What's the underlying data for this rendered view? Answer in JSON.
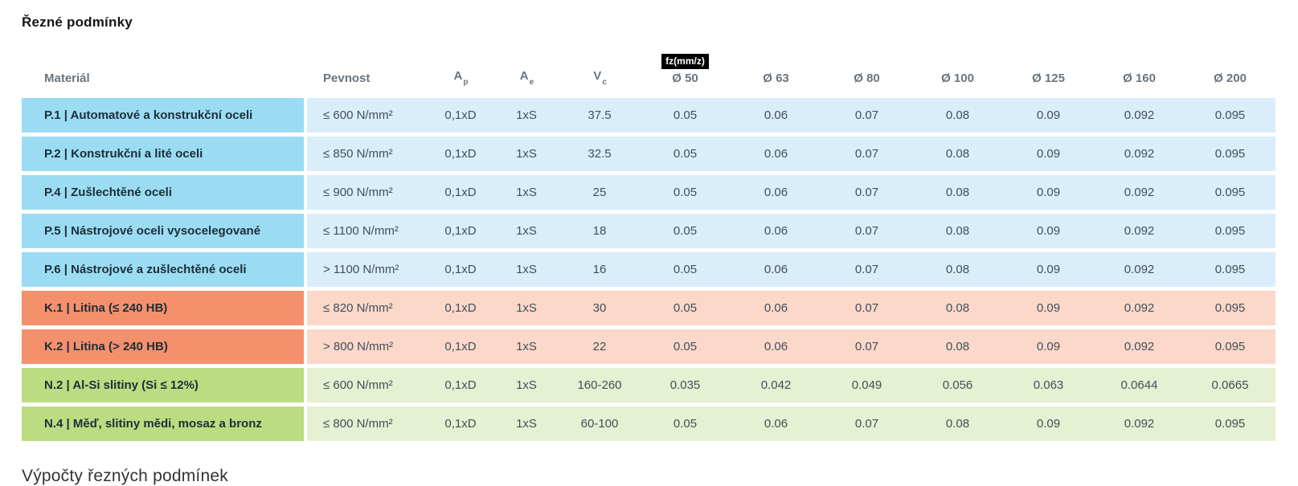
{
  "page": {
    "title": "Řezné podmínky",
    "section_heading": "Výpočty řezných podmínek"
  },
  "table": {
    "headers": {
      "material": "Materiál",
      "strength": "Pevnost",
      "ap": {
        "base": "A",
        "sub": "p"
      },
      "ae": {
        "base": "A",
        "sub": "e"
      },
      "vc": {
        "base": "V",
        "sub": "c"
      },
      "fz_badge": "fz(mm/z)",
      "diameters": [
        "Ø 50",
        "Ø 63",
        "Ø 80",
        "Ø 100",
        "Ø 125",
        "Ø 160",
        "Ø 200"
      ]
    },
    "colors": {
      "steel_dark": "#9bdcf3",
      "steel_light": "#d9eefa",
      "cast_iron_dark": "#f5906c",
      "cast_iron_light": "#fbd8ca",
      "nonferrous_dark": "#bcdc82",
      "nonferrous_light": "#e6f0d2"
    },
    "rows": [
      {
        "group": "steel",
        "material": "P.1 | Automatové a konstrukční oceli",
        "pevnost": "≤ 600 N/mm²",
        "ap": "0,1xD",
        "ae": "1xS",
        "vc": "37.5",
        "fz": [
          "0.05",
          "0.06",
          "0.07",
          "0.08",
          "0.09",
          "0.092",
          "0.095"
        ]
      },
      {
        "group": "steel",
        "material": "P.2 | Konstrukční a lité oceli",
        "pevnost": "≤ 850 N/mm²",
        "ap": "0,1xD",
        "ae": "1xS",
        "vc": "32.5",
        "fz": [
          "0.05",
          "0.06",
          "0.07",
          "0.08",
          "0.09",
          "0.092",
          "0.095"
        ]
      },
      {
        "group": "steel",
        "material": "P.4 | Zušlechtěné oceli",
        "pevnost": "≤ 900 N/mm²",
        "ap": "0,1xD",
        "ae": "1xS",
        "vc": "25",
        "fz": [
          "0.05",
          "0.06",
          "0.07",
          "0.08",
          "0.09",
          "0.092",
          "0.095"
        ]
      },
      {
        "group": "steel",
        "material": "P.5 | Nástrojové oceli vysocelegované",
        "pevnost": "≤ 1100 N/mm²",
        "ap": "0,1xD",
        "ae": "1xS",
        "vc": "18",
        "fz": [
          "0.05",
          "0.06",
          "0.07",
          "0.08",
          "0.09",
          "0.092",
          "0.095"
        ]
      },
      {
        "group": "steel",
        "material": "P.6 | Nástrojové a zušlechtěné oceli",
        "pevnost": "> 1100 N/mm²",
        "ap": "0,1xD",
        "ae": "1xS",
        "vc": "16",
        "fz": [
          "0.05",
          "0.06",
          "0.07",
          "0.08",
          "0.09",
          "0.092",
          "0.095"
        ]
      },
      {
        "group": "cast_iron",
        "material": "K.1 | Litina (≤ 240 HB)",
        "pevnost": "≤ 820 N/mm²",
        "ap": "0,1xD",
        "ae": "1xS",
        "vc": "30",
        "fz": [
          "0.05",
          "0.06",
          "0.07",
          "0.08",
          "0.09",
          "0.092",
          "0.095"
        ]
      },
      {
        "group": "cast_iron",
        "material": "K.2 | Litina (> 240 HB)",
        "pevnost": "> 800 N/mm²",
        "ap": "0,1xD",
        "ae": "1xS",
        "vc": "22",
        "fz": [
          "0.05",
          "0.06",
          "0.07",
          "0.08",
          "0.09",
          "0.092",
          "0.095"
        ]
      },
      {
        "group": "nonferrous",
        "material": "N.2 | Al-Si slitiny (Si ≤ 12%)",
        "pevnost": "≤ 600 N/mm²",
        "ap": "0,1xD",
        "ae": "1xS",
        "vc": "160-260",
        "fz": [
          "0.035",
          "0.042",
          "0.049",
          "0.056",
          "0.063",
          "0.0644",
          "0.0665"
        ]
      },
      {
        "group": "nonferrous",
        "material": "N.4 | Měď, slitiny mědi, mosaz a bronz",
        "pevnost": "≤ 800 N/mm²",
        "ap": "0,1xD",
        "ae": "1xS",
        "vc": "60-100",
        "fz": [
          "0.05",
          "0.06",
          "0.07",
          "0.08",
          "0.09",
          "0.092",
          "0.095"
        ]
      }
    ]
  }
}
